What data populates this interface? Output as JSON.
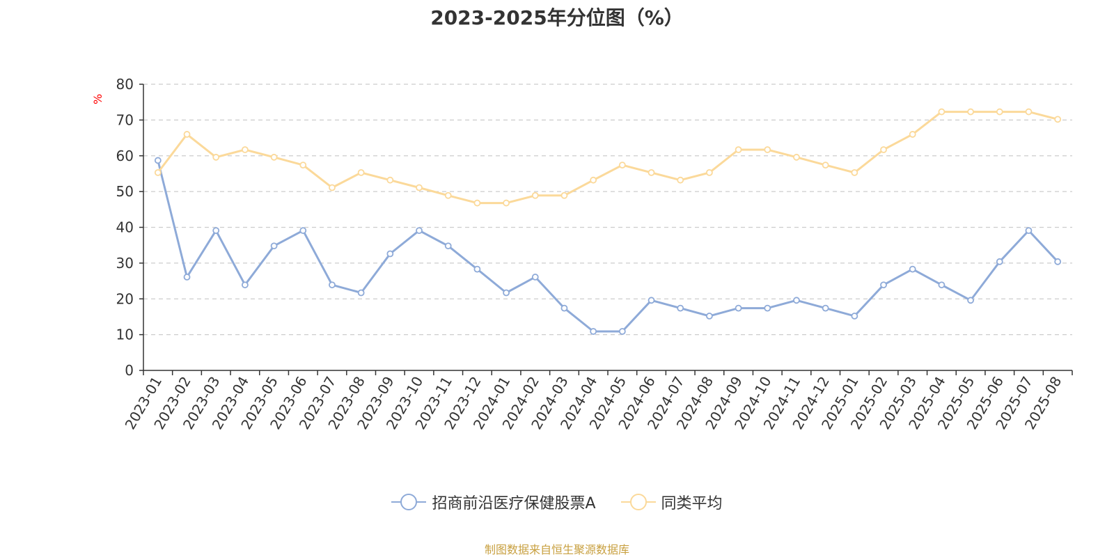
{
  "chart_data": {
    "type": "line",
    "title": "2023-2025年分位图（%）",
    "ylabel": "%",
    "ylim": [
      0,
      80
    ],
    "yticks": [
      0,
      10,
      20,
      30,
      40,
      50,
      60,
      70,
      80
    ],
    "categories": [
      "2023-01",
      "2023-02",
      "2023-03",
      "2023-04",
      "2023-05",
      "2023-06",
      "2023-07",
      "2023-08",
      "2023-09",
      "2023-10",
      "2023-11",
      "2023-12",
      "2024-01",
      "2024-02",
      "2024-03",
      "2024-04",
      "2024-05",
      "2024-06",
      "2024-07",
      "2024-08",
      "2024-09",
      "2024-10",
      "2024-11",
      "2024-12",
      "2025-01",
      "2025-02",
      "2025-03",
      "2025-04",
      "2025-05",
      "2025-06",
      "2025-07",
      "2025-08"
    ],
    "series": [
      {
        "name": "招商前沿医疗保健股票A",
        "color": "#8eaad8",
        "values": [
          58.7,
          26.1,
          39.1,
          23.9,
          34.8,
          39.1,
          23.9,
          21.7,
          32.6,
          39.1,
          34.8,
          28.3,
          21.7,
          26.1,
          17.4,
          10.9,
          10.9,
          19.6,
          17.4,
          15.2,
          17.4,
          17.4,
          19.6,
          17.4,
          15.2,
          23.9,
          28.3,
          23.9,
          19.6,
          30.4,
          39.1,
          30.4
        ]
      },
      {
        "name": "同类平均",
        "color": "#fbd99a",
        "values": [
          55.3,
          66.0,
          59.6,
          61.7,
          59.6,
          57.4,
          51.1,
          55.3,
          53.2,
          51.1,
          48.9,
          46.8,
          46.8,
          48.9,
          48.9,
          53.2,
          57.4,
          55.3,
          53.2,
          55.3,
          61.7,
          61.7,
          59.6,
          57.4,
          55.3,
          61.7,
          66.0,
          72.3,
          72.3,
          72.3,
          72.3,
          70.2
        ]
      }
    ],
    "grid": true,
    "legend": "bottom-center"
  },
  "source": "制图数据来自恒生聚源数据库"
}
